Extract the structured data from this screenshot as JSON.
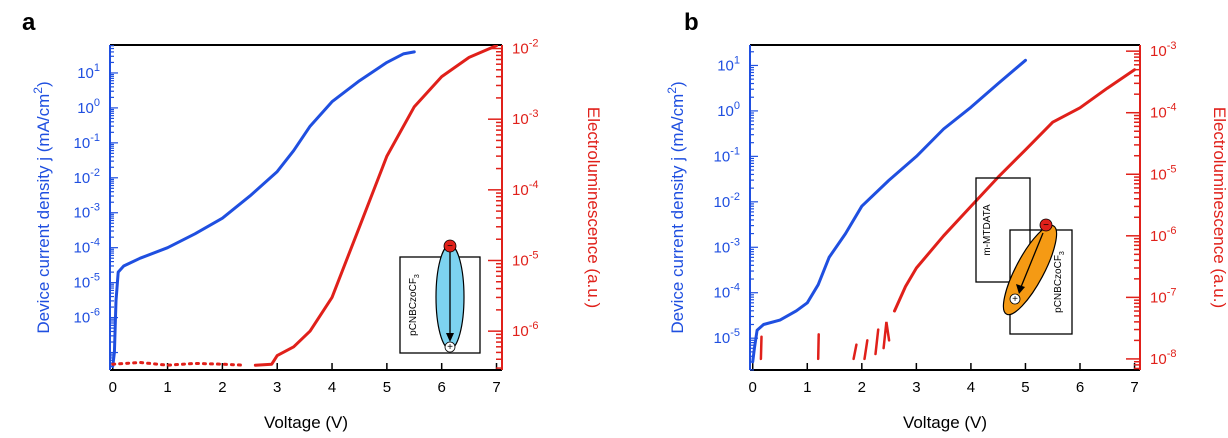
{
  "chart_data": [
    {
      "type": "line",
      "panel_label": "a",
      "xlabel": "Voltage (V)",
      "x_ticks": [
        "0",
        "1",
        "2",
        "3",
        "4",
        "5",
        "6",
        "7"
      ],
      "xlim": [
        -0.05,
        7.1
      ],
      "left_axis": {
        "label": "Device current density j (mA/cm²)",
        "label_main": "Device current density j (mA/cm",
        "label_sup": "2",
        "label_end": ")",
        "color": "#1f4fe0",
        "scale": "log",
        "ylim_exponent": [
          -7.5,
          1.8
        ],
        "ticks": [
          {
            "base": "10",
            "exp": "1",
            "value": 10
          },
          {
            "base": "10",
            "exp": "0",
            "value": 1
          },
          {
            "base": "10",
            "exp": "-1",
            "value": 0.1
          },
          {
            "base": "10",
            "exp": "-2",
            "value": 0.01
          },
          {
            "base": "10",
            "exp": "-3",
            "value": 0.001
          },
          {
            "base": "10",
            "exp": "-4",
            "value": 0.0001
          },
          {
            "base": "10",
            "exp": "-5",
            "value": 1e-05
          },
          {
            "base": "10",
            "exp": "-6",
            "value": 1e-06
          }
        ]
      },
      "right_axis": {
        "label": "Electroluminescence (a.u.)",
        "color": "#e0201a",
        "scale": "log",
        "ylim_exponent": [
          -6.55,
          -1.95
        ],
        "ticks": [
          {
            "base": "10",
            "exp": "-2",
            "value": 0.01
          },
          {
            "base": "10",
            "exp": "-3",
            "value": 0.001
          },
          {
            "base": "10",
            "exp": "-4",
            "value": 0.0001
          },
          {
            "base": "10",
            "exp": "-5",
            "value": 1e-05
          },
          {
            "base": "10",
            "exp": "-6",
            "value": 1e-06
          }
        ]
      },
      "series": [
        {
          "axis": "left",
          "style": "solid",
          "color": "#1f4fe0",
          "points": [
            [
              0.0,
              4e-08
            ],
            [
              0.03,
              1e-07
            ],
            [
              0.06,
              3e-06
            ],
            [
              0.1,
              2e-05
            ],
            [
              0.2,
              3e-05
            ],
            [
              0.5,
              5e-05
            ],
            [
              1.0,
              0.0001
            ],
            [
              1.5,
              0.00025
            ],
            [
              2.0,
              0.0007
            ],
            [
              2.5,
              0.003
            ],
            [
              3.0,
              0.015
            ],
            [
              3.3,
              0.06
            ],
            [
              3.6,
              0.3
            ],
            [
              4.0,
              1.5
            ],
            [
              4.5,
              6
            ],
            [
              5.0,
              20
            ],
            [
              5.3,
              35
            ],
            [
              5.5,
              40
            ]
          ]
        },
        {
          "axis": "right",
          "style": "dotted",
          "color": "#e0201a",
          "points": [
            [
              0.0,
              3.4e-07
            ],
            [
              0.5,
              3.6e-07
            ],
            [
              1.0,
              3.3e-07
            ],
            [
              1.5,
              3.5e-07
            ],
            [
              2.0,
              3.4e-07
            ],
            [
              2.4,
              3.3e-07
            ]
          ]
        },
        {
          "axis": "right",
          "style": "solid",
          "color": "#e0201a",
          "points": [
            [
              2.6,
              3.3e-07
            ],
            [
              2.9,
              3.4e-07
            ],
            [
              3.0,
              4.5e-07
            ],
            [
              3.3,
              6e-07
            ],
            [
              3.6,
              1e-06
            ],
            [
              4.0,
              3e-06
            ],
            [
              4.5,
              3e-05
            ],
            [
              5.0,
              0.0003
            ],
            [
              5.5,
              0.0015
            ],
            [
              6.0,
              0.004
            ],
            [
              6.5,
              0.0075
            ],
            [
              7.0,
              0.011
            ]
          ]
        }
      ],
      "inset": {
        "label": "pCNBCzoCF₃",
        "label_main": "pCNBCzoCF",
        "label_sub": "3",
        "ellipse_color": "#7dd3f0",
        "minus_symbol": "−",
        "plus_symbol": "+"
      }
    },
    {
      "type": "line",
      "panel_label": "b",
      "xlabel": "Voltage (V)",
      "x_ticks": [
        "0",
        "1",
        "2",
        "3",
        "4",
        "5",
        "6",
        "7"
      ],
      "xlim": [
        -0.05,
        7.1
      ],
      "left_axis": {
        "label": "Device current density j (mA/cm²)",
        "label_main": "Device current density j (mA/cm",
        "label_sup": "2",
        "label_end": ")",
        "color": "#1f4fe0",
        "scale": "log",
        "ylim_exponent": [
          -5.7,
          1.45
        ],
        "ticks": [
          {
            "base": "10",
            "exp": "1",
            "value": 10
          },
          {
            "base": "10",
            "exp": "0",
            "value": 1
          },
          {
            "base": "10",
            "exp": "-1",
            "value": 0.1
          },
          {
            "base": "10",
            "exp": "-2",
            "value": 0.01
          },
          {
            "base": "10",
            "exp": "-3",
            "value": 0.001
          },
          {
            "base": "10",
            "exp": "-4",
            "value": 0.0001
          },
          {
            "base": "10",
            "exp": "-5",
            "value": 1e-05
          }
        ]
      },
      "right_axis": {
        "label": "Electroluminescence (a.u.)",
        "color": "#e0201a",
        "scale": "log",
        "ylim_exponent": [
          -8.18,
          -2.9
        ],
        "ticks": [
          {
            "base": "10",
            "exp": "-3",
            "value": 0.001
          },
          {
            "base": "10",
            "exp": "-4",
            "value": 0.0001
          },
          {
            "base": "10",
            "exp": "-5",
            "value": 1e-05
          },
          {
            "base": "10",
            "exp": "-6",
            "value": 1e-06
          },
          {
            "base": "10",
            "exp": "-7",
            "value": 1e-07
          },
          {
            "base": "10",
            "exp": "-8",
            "value": 1e-08
          }
        ]
      },
      "series": [
        {
          "axis": "left",
          "style": "solid",
          "color": "#1f4fe0",
          "points": [
            [
              0.0,
              3e-06
            ],
            [
              0.03,
              6e-06
            ],
            [
              0.08,
              1.5e-05
            ],
            [
              0.2,
              2e-05
            ],
            [
              0.5,
              2.5e-05
            ],
            [
              0.8,
              4e-05
            ],
            [
              1.0,
              6e-05
            ],
            [
              1.2,
              0.00015
            ],
            [
              1.4,
              0.0006
            ],
            [
              1.7,
              0.002
            ],
            [
              2.0,
              0.008
            ],
            [
              2.5,
              0.03
            ],
            [
              3.0,
              0.1
            ],
            [
              3.5,
              0.4
            ],
            [
              4.0,
              1.2
            ],
            [
              4.5,
              4
            ],
            [
              5.0,
              13
            ]
          ]
        },
        {
          "axis": "right",
          "style": "solid",
          "color": "#e0201a",
          "points": [
            [
              2.6,
              6e-08
            ],
            [
              2.8,
              1.5e-07
            ],
            [
              3.0,
              3e-07
            ],
            [
              3.5,
              1e-06
            ],
            [
              4.0,
              3e-06
            ],
            [
              4.5,
              9e-06
            ],
            [
              5.0,
              2.5e-05
            ],
            [
              5.5,
              7e-05
            ],
            [
              6.0,
              0.00012
            ],
            [
              6.5,
              0.00025
            ],
            [
              7.0,
              0.0005
            ]
          ]
        }
      ],
      "noise_segments": [
        [
          [
            0.15,
            1e-08
          ],
          [
            0.16,
            2.3e-08
          ]
        ],
        [
          [
            1.2,
            1e-08
          ],
          [
            1.21,
            2.5e-08
          ]
        ],
        [
          [
            1.85,
            1e-08
          ],
          [
            1.9,
            1.7e-08
          ]
        ],
        [
          [
            2.05,
            1e-08
          ],
          [
            2.1,
            2e-08
          ]
        ],
        [
          [
            2.25,
            1.2e-08
          ],
          [
            2.3,
            3e-08
          ]
        ],
        [
          [
            2.4,
            1.5e-08
          ],
          [
            2.45,
            4e-08
          ],
          [
            2.5,
            2e-08
          ]
        ]
      ],
      "inset": {
        "label1": "m-MTDATA",
        "label2": "pCNBCzoCF₃",
        "label2_main": "pCNBCzoCF",
        "label2_sub": "3",
        "ellipse_color": "#f59a14",
        "minus_symbol": "−",
        "plus_symbol": "+"
      }
    }
  ]
}
